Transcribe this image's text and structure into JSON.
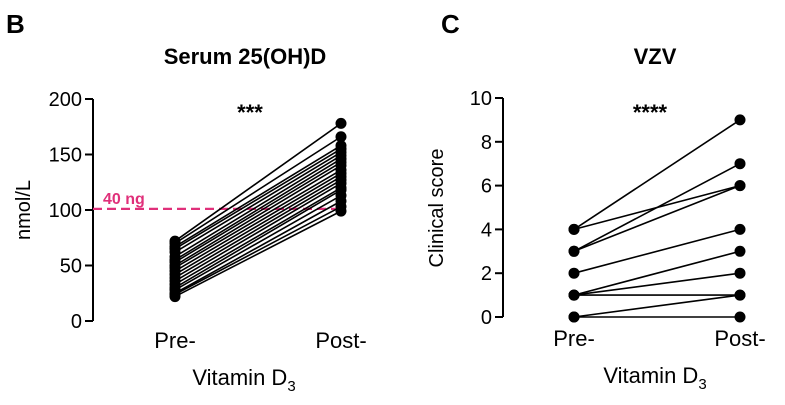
{
  "chart_data": [
    {
      "panel": "B",
      "type": "line",
      "title": "Serum 25(OH)D",
      "ylabel": "nmol/L",
      "xlabel": "Vitamin  D",
      "xlabel_sub": "3",
      "categories": [
        "Pre-",
        "Post-"
      ],
      "ylim": [
        0,
        200
      ],
      "yticks": [
        0,
        50,
        100,
        150,
        200
      ],
      "significance": "***",
      "reference_line": {
        "value": 101,
        "label": "40 ng",
        "color": "#e0307a"
      },
      "pairs": [
        [
          22,
          99
        ],
        [
          24,
          103
        ],
        [
          25,
          108
        ],
        [
          28,
          113
        ],
        [
          30,
          118
        ],
        [
          33,
          120
        ],
        [
          36,
          124
        ],
        [
          39,
          127
        ],
        [
          42,
          130
        ],
        [
          45,
          133
        ],
        [
          48,
          136
        ],
        [
          50,
          140
        ],
        [
          53,
          143
        ],
        [
          55,
          146
        ],
        [
          58,
          149
        ],
        [
          62,
          152
        ],
        [
          65,
          155
        ],
        [
          67,
          158
        ],
        [
          70,
          166
        ],
        [
          72,
          178
        ]
      ]
    },
    {
      "panel": "C",
      "type": "line",
      "title": "VZV",
      "ylabel": "Clinical score",
      "xlabel": "Vitamin  D",
      "xlabel_sub": "3",
      "categories": [
        "Pre-",
        "Post-"
      ],
      "ylim": [
        0,
        10
      ],
      "yticks": [
        0,
        2,
        4,
        6,
        8,
        10
      ],
      "significance": "****",
      "pairs": [
        [
          0,
          0
        ],
        [
          0,
          1
        ],
        [
          1,
          1
        ],
        [
          1,
          2
        ],
        [
          1,
          3
        ],
        [
          2,
          4
        ],
        [
          3,
          6
        ],
        [
          3,
          7
        ],
        [
          4,
          6
        ],
        [
          4,
          9
        ]
      ]
    }
  ]
}
